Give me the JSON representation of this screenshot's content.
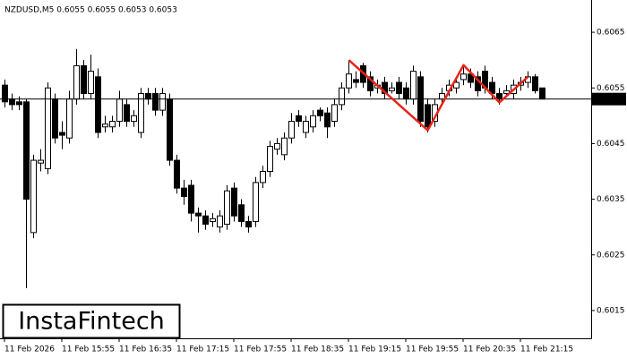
{
  "chart_data": {
    "type": "candlestick",
    "title": "NZDUSD,M5  0.6055 0.6055 0.6053 0.6053",
    "categories": [
      "11 Feb 2026",
      null,
      null,
      null,
      null,
      null,
      null,
      null,
      "11 Feb 15:55",
      null,
      null,
      null,
      null,
      null,
      null,
      null,
      "11 Feb 16:35",
      null,
      null,
      null,
      null,
      null,
      null,
      null,
      "11 Feb 17:15",
      null,
      null,
      null,
      null,
      null,
      null,
      null,
      "11 Feb 17:55",
      null,
      null,
      null,
      null,
      null,
      null,
      null,
      "11 Feb 18:35",
      null,
      null,
      null,
      null,
      null,
      null,
      null,
      "11 Feb 19:15",
      null,
      null,
      null,
      null,
      null,
      null,
      null,
      "11 Feb 19:55",
      null,
      null,
      null,
      null,
      null,
      null,
      null,
      "11 Feb 20:35",
      null,
      null,
      null,
      null,
      null,
      null,
      null,
      "11 Feb 21:15",
      null,
      null,
      null
    ],
    "open": [
      0.60555,
      0.6053,
      0.60525,
      0.60525,
      0.6029,
      0.60415,
      0.60405,
      0.6053,
      0.6047,
      0.6046,
      0.6053,
      0.6059,
      0.6054,
      0.6057,
      0.6048,
      0.6048,
      0.6049,
      0.6052,
      0.6049,
      0.6047,
      0.6054,
      0.6054,
      0.6051,
      0.6053,
      0.6042,
      0.6037,
      0.60375,
      0.60325,
      0.6032,
      0.6031,
      0.603,
      0.60305,
      0.6037,
      0.6034,
      0.6031,
      0.6031,
      0.6038,
      0.604,
      0.6044,
      0.6043,
      0.6046,
      0.605,
      0.6047,
      0.6048,
      0.6051,
      0.60505,
      0.6049,
      0.6052,
      0.6055,
      0.60565,
      0.6059,
      0.6057,
      0.6055,
      0.6056,
      0.60545,
      0.6056,
      0.6055,
      0.6053,
      0.6057,
      0.6052,
      0.6049,
      0.6053,
      0.60545,
      0.6055,
      0.60565,
      0.60575,
      0.6057,
      0.6058,
      0.6056,
      0.6054,
      0.6054,
      0.6054,
      0.60555,
      0.6056,
      0.6057,
      0.6055
    ],
    "high": [
      0.60565,
      0.6054,
      0.60535,
      0.6053,
      0.6043,
      0.6044,
      0.6056,
      0.6054,
      0.6049,
      0.60545,
      0.6062,
      0.606,
      0.6061,
      0.60585,
      0.605,
      0.605,
      0.60545,
      0.6053,
      0.6051,
      0.6055,
      0.6055,
      0.6055,
      0.6055,
      0.6054,
      0.6043,
      0.60385,
      0.60385,
      0.60335,
      0.6033,
      0.60325,
      0.6033,
      0.60375,
      0.6038,
      0.6035,
      0.6032,
      0.6039,
      0.6041,
      0.60455,
      0.6046,
      0.6047,
      0.60505,
      0.6051,
      0.605,
      0.6051,
      0.60515,
      0.60515,
      0.6053,
      0.6056,
      0.606,
      0.6058,
      0.60595,
      0.6058,
      0.60565,
      0.6057,
      0.6056,
      0.6057,
      0.6056,
      0.6059,
      0.6058,
      0.6053,
      0.6053,
      0.6055,
      0.60565,
      0.6057,
      0.6059,
      0.60585,
      0.6058,
      0.6059,
      0.6057,
      0.6055,
      0.60555,
      0.60565,
      0.6057,
      0.6058,
      0.60575,
      0.6055
    ],
    "low": [
      0.60515,
      0.6051,
      0.6051,
      0.6019,
      0.6028,
      0.604,
      0.60395,
      0.6045,
      0.6044,
      0.6045,
      0.6052,
      0.6053,
      0.6053,
      0.6046,
      0.6047,
      0.6047,
      0.6048,
      0.6048,
      0.6048,
      0.6046,
      0.6052,
      0.605,
      0.605,
      0.6041,
      0.6036,
      0.6034,
      0.6031,
      0.6029,
      0.60295,
      0.603,
      0.6029,
      0.60295,
      0.6031,
      0.603,
      0.6029,
      0.603,
      0.6037,
      0.6039,
      0.6043,
      0.6042,
      0.6045,
      0.6048,
      0.6046,
      0.6047,
      0.6049,
      0.6046,
      0.6048,
      0.6051,
      0.6054,
      0.6055,
      0.6055,
      0.60535,
      0.6054,
      0.6053,
      0.6054,
      0.6053,
      0.6052,
      0.6052,
      0.6048,
      0.6047,
      0.6048,
      0.6052,
      0.60535,
      0.6054,
      0.60555,
      0.6055,
      0.60535,
      0.6054,
      0.6053,
      0.6052,
      0.60535,
      0.6053,
      0.60545,
      0.6055,
      0.6054,
      0.6053
    ],
    "close": [
      0.60525,
      0.6052,
      0.6052,
      0.6035,
      0.6042,
      0.6042,
      0.6055,
      0.6046,
      0.60465,
      0.6053,
      0.6059,
      0.6054,
      0.6058,
      0.6047,
      0.60485,
      0.6049,
      0.6053,
      0.6049,
      0.605,
      0.6054,
      0.6053,
      0.6051,
      0.6054,
      0.6042,
      0.6037,
      0.60355,
      0.60325,
      0.6032,
      0.60305,
      0.60315,
      0.6032,
      0.60365,
      0.6032,
      0.6031,
      0.603,
      0.6038,
      0.604,
      0.60445,
      0.6045,
      0.6046,
      0.6049,
      0.6049,
      0.6049,
      0.605,
      0.605,
      0.6048,
      0.6052,
      0.6055,
      0.60575,
      0.6056,
      0.6056,
      0.60545,
      0.60555,
      0.6054,
      0.6055,
      0.6054,
      0.6053,
      0.6058,
      0.6049,
      0.6048,
      0.6052,
      0.6054,
      0.60555,
      0.6056,
      0.60575,
      0.6056,
      0.60545,
      0.6055,
      0.6054,
      0.6053,
      0.60545,
      0.60555,
      0.6056,
      0.6057,
      0.60545,
      0.6053
    ],
    "current_price": 0.6053,
    "pattern": {
      "color": "#e8231b",
      "x": [
        48,
        59,
        64,
        69,
        73
      ],
      "values": [
        0.606,
        0.60474,
        0.60591,
        0.60524,
        0.6057
      ]
    },
    "ylim": [
      0.601,
      0.607
    ],
    "yticks": [
      0.6015,
      0.6025,
      0.6035,
      0.6045,
      0.6055,
      0.6065
    ],
    "logo": "InstaFintech"
  }
}
